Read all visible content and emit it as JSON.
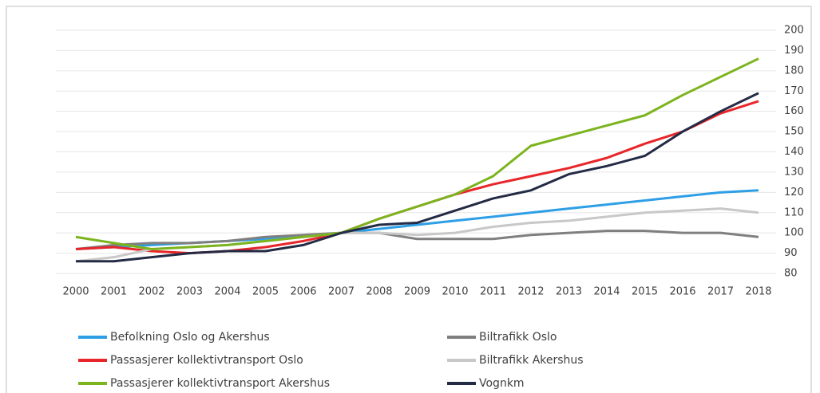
{
  "chart_data": {
    "type": "line",
    "categories": [
      "2000",
      "2001",
      "2002",
      "2003",
      "2004",
      "2005",
      "2006",
      "2007",
      "2008",
      "2009",
      "2010",
      "2011",
      "2012",
      "2013",
      "2014",
      "2015",
      "2016",
      "2017",
      "2018"
    ],
    "series": [
      {
        "name": "Befolkning Oslo og Akershus",
        "color": "#2e9fe6",
        "values": [
          92,
          93,
          94,
          95,
          96,
          97,
          98,
          100,
          102,
          104,
          106,
          108,
          110,
          112,
          114,
          116,
          118,
          120,
          121
        ]
      },
      {
        "name": "Biltrafikk Oslo",
        "color": "#7f7f7f",
        "values": [
          92,
          94,
          95,
          95,
          96,
          98,
          99,
          100,
          100,
          97,
          97,
          97,
          99,
          100,
          101,
          101,
          100,
          100,
          98
        ]
      },
      {
        "name": "Passasjerer kollektivtransport Oslo",
        "color": "#e8262a",
        "values": [
          92,
          93,
          91,
          90,
          91,
          93,
          96,
          100,
          107,
          113,
          119,
          124,
          128,
          132,
          137,
          144,
          150,
          159,
          165
        ]
      },
      {
        "name": "Biltrafikk Akershus",
        "color": "#c8c8c8",
        "values": [
          86,
          88,
          92,
          93,
          94,
          96,
          98,
          100,
          100,
          99,
          100,
          103,
          105,
          106,
          108,
          110,
          111,
          112,
          110
        ]
      },
      {
        "name": "Passasjerer kollektivtransport Akershus",
        "color": "#7cb41e",
        "values": [
          98,
          95,
          92,
          93,
          94,
          96,
          98,
          100,
          107,
          113,
          119,
          128,
          143,
          148,
          153,
          158,
          168,
          177,
          186
        ]
      },
      {
        "name": "Vognkm",
        "color": "#232b45",
        "values": [
          86,
          86,
          88,
          90,
          91,
          91,
          94,
          100,
          104,
          105,
          111,
          117,
          121,
          129,
          133,
          138,
          150,
          160,
          169
        ]
      }
    ],
    "ylim": [
      80,
      200
    ],
    "yticks": [
      80,
      90,
      100,
      110,
      120,
      130,
      140,
      150,
      160,
      170,
      180,
      190,
      200
    ],
    "grid": true,
    "legend": "bottom"
  }
}
